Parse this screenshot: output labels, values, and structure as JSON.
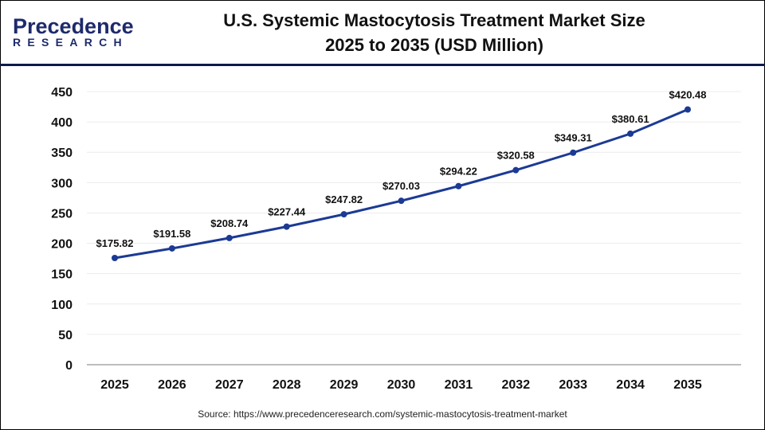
{
  "logo": {
    "line1": "Precedence",
    "line2": "RESEARCH"
  },
  "title_line1": "U.S. Systemic Mastocytosis Treatment Market Size",
  "title_line2": "2025 to 2035 (USD Million)",
  "source": "Source: https://www.precedenceresearch.com/systemic-mastocytosis-treatment-market",
  "chart_data": {
    "type": "line",
    "categories": [
      "2025",
      "2026",
      "2027",
      "2028",
      "2029",
      "2030",
      "2031",
      "2032",
      "2033",
      "2034",
      "2035"
    ],
    "values": [
      175.82,
      191.58,
      208.74,
      227.44,
      247.82,
      270.03,
      294.22,
      320.58,
      349.31,
      380.61,
      420.48
    ],
    "data_labels": [
      "$175.82",
      "$191.58",
      "$208.74",
      "$227.44",
      "$247.82",
      "$270.03",
      "$294.22",
      "$320.58",
      "$349.31",
      "$380.61",
      "$420.48"
    ],
    "yticks": [
      0,
      50,
      100,
      150,
      200,
      250,
      300,
      350,
      400,
      450
    ],
    "ylim": [
      0,
      450
    ],
    "grid": true,
    "line_color": "#1c3a94"
  }
}
